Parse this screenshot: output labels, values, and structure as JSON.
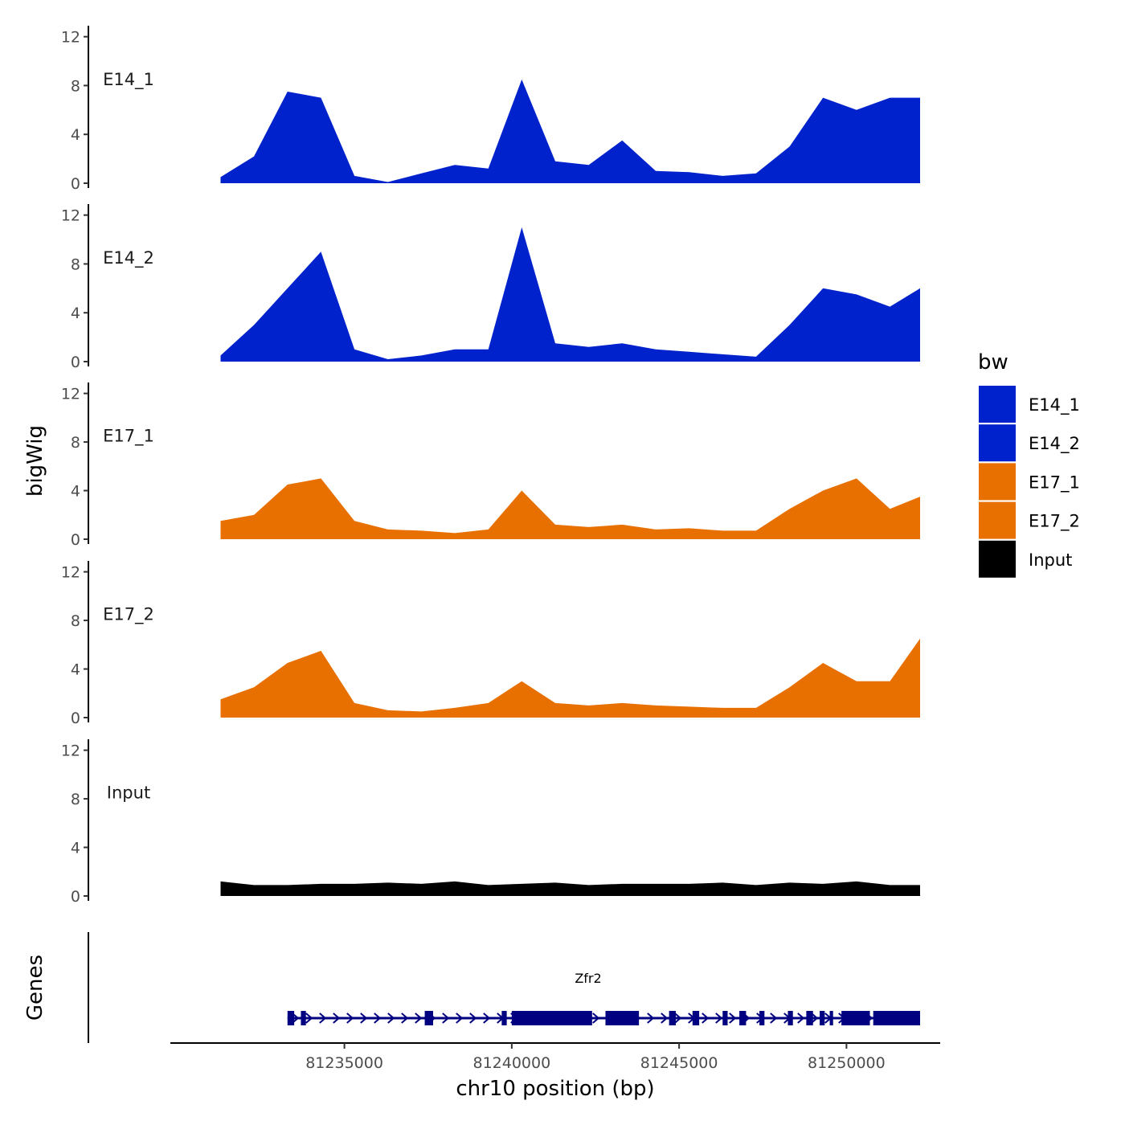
{
  "chart_data": {
    "type": "area",
    "ylabel": "bigWig",
    "xlabel": "chr10 position (bp)",
    "ylim": [
      0,
      13
    ],
    "yticks": [
      0,
      4,
      8,
      12
    ],
    "xlim": [
      81229800,
      81252800
    ],
    "xticks": [
      81235000,
      81240000,
      81245000,
      81250000
    ],
    "xtick_labels": [
      "81235000",
      "81240000",
      "81245000",
      "81250000"
    ],
    "x": [
      81231300,
      81232300,
      81233300,
      81234300,
      81235300,
      81236300,
      81237300,
      81238300,
      81239300,
      81240300,
      81241300,
      81242300,
      81243300,
      81244300,
      81245300,
      81246300,
      81247300,
      81248300,
      81249300,
      81250300,
      81251300,
      81252200
    ],
    "series": [
      {
        "name": "E14_1",
        "label": "E14_1",
        "color": "#0022CC",
        "values": [
          0.5,
          2.2,
          7.5,
          7.0,
          0.6,
          0.1,
          0.8,
          1.5,
          1.2,
          8.5,
          1.8,
          1.5,
          3.5,
          1.0,
          0.9,
          0.6,
          0.8,
          3.0,
          7.0,
          6.0,
          7.0,
          7.0
        ]
      },
      {
        "name": "E14_2",
        "label": "E14_2",
        "color": "#0022CC",
        "values": [
          0.5,
          3.0,
          6.0,
          9.0,
          1.0,
          0.2,
          0.5,
          1.0,
          1.0,
          11.0,
          1.5,
          1.2,
          1.5,
          1.0,
          0.8,
          0.6,
          0.4,
          3.0,
          6.0,
          5.5,
          4.5,
          6.0
        ]
      },
      {
        "name": "E17_1",
        "label": "E17_1",
        "color": "#E87000",
        "values": [
          1.5,
          2.0,
          4.5,
          5.0,
          1.5,
          0.8,
          0.7,
          0.5,
          0.8,
          4.0,
          1.2,
          1.0,
          1.2,
          0.8,
          0.9,
          0.7,
          0.7,
          2.5,
          4.0,
          5.0,
          2.5,
          3.5
        ]
      },
      {
        "name": "E17_2",
        "label": "E17_2",
        "color": "#E87000",
        "values": [
          1.5,
          2.5,
          4.5,
          5.5,
          1.2,
          0.6,
          0.5,
          0.8,
          1.2,
          3.0,
          1.2,
          1.0,
          1.2,
          1.0,
          0.9,
          0.8,
          0.8,
          2.5,
          4.5,
          3.0,
          3.0,
          6.5
        ]
      },
      {
        "name": "Input",
        "label": "Input",
        "color": "#000000",
        "values": [
          1.2,
          0.9,
          0.9,
          1.0,
          1.0,
          1.1,
          1.0,
          1.2,
          0.9,
          1.0,
          1.1,
          0.9,
          1.0,
          1.0,
          1.0,
          1.1,
          0.9,
          1.1,
          1.0,
          1.2,
          0.9,
          0.9
        ]
      }
    ],
    "legend": {
      "title": "bw",
      "position": "right",
      "entries": [
        {
          "label": "E14_1",
          "color": "#0022CC"
        },
        {
          "label": "E14_2",
          "color": "#0022CC"
        },
        {
          "label": "E17_1",
          "color": "#E87000"
        },
        {
          "label": "E17_2",
          "color": "#E87000"
        },
        {
          "label": "Input",
          "color": "#000000"
        }
      ]
    },
    "genes_track": {
      "ylabel": "Genes",
      "gene_name": "Zfr2",
      "color": "#000080",
      "start": 81233300,
      "end": 81252200,
      "exons": [
        [
          81233300,
          81233500
        ],
        [
          81233700,
          81233850
        ],
        [
          81237400,
          81237650
        ],
        [
          81239700,
          81239850
        ],
        [
          81240000,
          81242400
        ],
        [
          81242800,
          81243800
        ],
        [
          81244700,
          81244900
        ],
        [
          81245400,
          81245600
        ],
        [
          81246300,
          81246450
        ],
        [
          81246800,
          81247000
        ],
        [
          81247400,
          81247550
        ],
        [
          81248250,
          81248400
        ],
        [
          81248800,
          81249000
        ],
        [
          81249200,
          81249350
        ],
        [
          81249500,
          81249600
        ],
        [
          81249850,
          81250700
        ],
        [
          81250800,
          81252200
        ]
      ]
    }
  }
}
